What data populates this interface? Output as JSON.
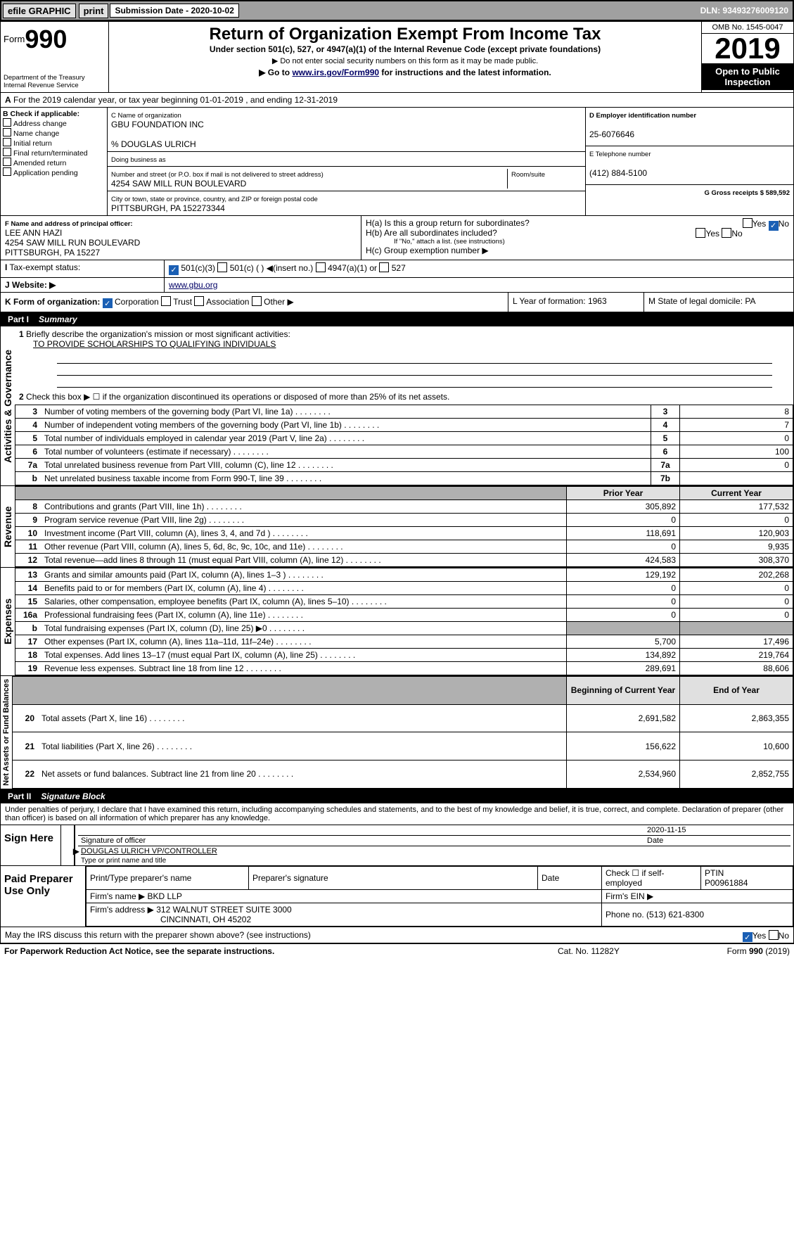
{
  "topbar": {
    "efile": "efile GRAPHIC",
    "print": "print",
    "subLabel": "Submission Date - 2020-10-02",
    "dln": "DLN: 93493276009120"
  },
  "formhdr": {
    "formword": "Form",
    "num": "990",
    "dept": "Department of the Treasury",
    "irs": "Internal Revenue Service",
    "title": "Return of Organization Exempt From Income Tax",
    "sub1": "Under section 501(c), 527, or 4947(a)(1) of the Internal Revenue Code (except private foundations)",
    "sub2": "▶ Do not enter social security numbers on this form as it may be made public.",
    "sub3a": "▶ Go to ",
    "sub3link": "www.irs.gov/Form990",
    "sub3b": " for instructions and the latest information.",
    "omb": "OMB No. 1545-0047",
    "year": "2019",
    "open": "Open to Public Inspection"
  },
  "periodA": "For the 2019 calendar year, or tax year beginning 01-01-2019   , and ending 12-31-2019",
  "B": {
    "hdr": "B Check if applicable:",
    "opts": [
      "Address change",
      "Name change",
      "Initial return",
      "Final return/terminated",
      "Amended return",
      "Application pending"
    ]
  },
  "C": {
    "nameLbl": "C Name of organization",
    "name": "GBU FOUNDATION INC",
    "care": "% DOUGLAS ULRICH",
    "dbaLbl": "Doing business as",
    "streetLbl": "Number and street (or P.O. box if mail is not delivered to street address)",
    "street": "4254 SAW MILL RUN BOULEVARD",
    "roomLbl": "Room/suite",
    "cityLbl": "City or town, state or province, country, and ZIP or foreign postal code",
    "city": "PITTSBURGH, PA  152273344"
  },
  "D": {
    "lbl": "D Employer identification number",
    "val": "25-6076646"
  },
  "E": {
    "lbl": "E Telephone number",
    "val": "(412) 884-5100"
  },
  "G": {
    "lbl": "G Gross receipts $ 589,592"
  },
  "F": {
    "lbl": "F  Name and address of principal officer:",
    "name": "LEE ANN HAZI",
    "addr1": "4254 SAW MILL RUN BOULEVARD",
    "addr2": "PITTSBURGH, PA  15227"
  },
  "H": {
    "a": "H(a)  Is this a group return for subordinates?",
    "b": "H(b)  Are all subordinates included?",
    "bnote": "If \"No,\" attach a list. (see instructions)",
    "c": "H(c)  Group exemption number ▶",
    "yes": "Yes",
    "no": "No"
  },
  "I": {
    "lbl": "Tax-exempt status:",
    "c3": "501(c)(3)",
    "c": "501(c) (  ) ◀(insert no.)",
    "a1": "4947(a)(1) or",
    "s527": "527"
  },
  "J": {
    "lbl": "Website: ▶",
    "val": " www.gbu.org"
  },
  "K": {
    "lbl": "K Form of organization:",
    "corp": "Corporation",
    "trust": "Trust",
    "assoc": "Association",
    "other": "Other ▶"
  },
  "L": {
    "lbl": "L Year of formation: 1963"
  },
  "M": {
    "lbl": "M State of legal domicile: PA"
  },
  "part1": {
    "bar": "Part I",
    "title": "Summary",
    "l1": "Briefly describe the organization's mission or most significant activities:",
    "l1v": "TO PROVIDE SCHOLARSHIPS TO QUALIFYING INDIVIDUALS",
    "l2": "Check this box ▶ ☐  if the organization discontinued its operations or disposed of more than 25% of its net assets.",
    "rows": [
      {
        "n": "3",
        "d": "Number of voting members of the governing body (Part VI, line 1a)",
        "rn": "3",
        "v": "8"
      },
      {
        "n": "4",
        "d": "Number of independent voting members of the governing body (Part VI, line 1b)",
        "rn": "4",
        "v": "7"
      },
      {
        "n": "5",
        "d": "Total number of individuals employed in calendar year 2019 (Part V, line 2a)",
        "rn": "5",
        "v": "0"
      },
      {
        "n": "6",
        "d": "Total number of volunteers (estimate if necessary)",
        "rn": "6",
        "v": "100"
      },
      {
        "n": "7a",
        "d": "Total unrelated business revenue from Part VIII, column (C), line 12",
        "rn": "7a",
        "v": "0"
      },
      {
        "n": "b",
        "d": "Net unrelated business taxable income from Form 990-T, line 39",
        "rn": "7b",
        "v": ""
      }
    ],
    "prior": "Prior Year",
    "curr": "Current Year",
    "begin": "Beginning of Current Year",
    "end": "End of Year",
    "rev": [
      {
        "n": "8",
        "d": "Contributions and grants (Part VIII, line 1h)",
        "p": "305,892",
        "c": "177,532"
      },
      {
        "n": "9",
        "d": "Program service revenue (Part VIII, line 2g)",
        "p": "0",
        "c": "0"
      },
      {
        "n": "10",
        "d": "Investment income (Part VIII, column (A), lines 3, 4, and 7d )",
        "p": "118,691",
        "c": "120,903"
      },
      {
        "n": "11",
        "d": "Other revenue (Part VIII, column (A), lines 5, 6d, 8c, 9c, 10c, and 11e)",
        "p": "0",
        "c": "9,935"
      },
      {
        "n": "12",
        "d": "Total revenue—add lines 8 through 11 (must equal Part VIII, column (A), line 12)",
        "p": "424,583",
        "c": "308,370"
      }
    ],
    "exp": [
      {
        "n": "13",
        "d": "Grants and similar amounts paid (Part IX, column (A), lines 1–3 )",
        "p": "129,192",
        "c": "202,268"
      },
      {
        "n": "14",
        "d": "Benefits paid to or for members (Part IX, column (A), line 4)",
        "p": "0",
        "c": "0"
      },
      {
        "n": "15",
        "d": "Salaries, other compensation, employee benefits (Part IX, column (A), lines 5–10)",
        "p": "0",
        "c": "0"
      },
      {
        "n": "16a",
        "d": "Professional fundraising fees (Part IX, column (A), line 11e)",
        "p": "0",
        "c": "0"
      },
      {
        "n": "b",
        "d": "Total fundraising expenses (Part IX, column (D), line 25) ▶0",
        "p": "",
        "c": "",
        "grey": true
      },
      {
        "n": "17",
        "d": "Other expenses (Part IX, column (A), lines 11a–11d, 11f–24e)",
        "p": "5,700",
        "c": "17,496"
      },
      {
        "n": "18",
        "d": "Total expenses. Add lines 13–17 (must equal Part IX, column (A), line 25)",
        "p": "134,892",
        "c": "219,764"
      },
      {
        "n": "19",
        "d": "Revenue less expenses. Subtract line 18 from line 12",
        "p": "289,691",
        "c": "88,606"
      }
    ],
    "net": [
      {
        "n": "20",
        "d": "Total assets (Part X, line 16)",
        "p": "2,691,582",
        "c": "2,863,355"
      },
      {
        "n": "21",
        "d": "Total liabilities (Part X, line 26)",
        "p": "156,622",
        "c": "10,600"
      },
      {
        "n": "22",
        "d": "Net assets or fund balances. Subtract line 21 from line 20",
        "p": "2,534,960",
        "c": "2,852,755"
      }
    ],
    "vlabels": {
      "ag": "Activities & Governance",
      "rev": "Revenue",
      "exp": "Expenses",
      "net": "Net Assets or Fund Balances"
    }
  },
  "part2": {
    "bar": "Part II",
    "title": "Signature Block",
    "perjury": "Under penalties of perjury, I declare that I have examined this return, including accompanying schedules and statements, and to the best of my knowledge and belief, it is true, correct, and complete. Declaration of preparer (other than officer) is based on all information of which preparer has any knowledge.",
    "date": "2020-11-15",
    "sigoff": "Signature of officer",
    "dateLbl": "Date",
    "typed": "DOUGLAS ULRICH  VP/CONTROLLER",
    "typedLbl": "Type or print name and title",
    "sign": "Sign Here",
    "paid": "Paid Preparer Use Only",
    "pth": "Print/Type preparer's name",
    "psig": "Preparer's signature",
    "pdate": "Date",
    "pcheck": "Check ☐ if self-employed",
    "ptin": "PTIN",
    "ptinv": "P00961884",
    "firmname": "Firm's name    ▶",
    "firmval": "BKD LLP",
    "firmein": "Firm's EIN ▶",
    "firmaddr": "Firm's address ▶",
    "firmaddrv": "312 WALNUT STREET SUITE 3000",
    "firmcity": "CINCINNATI, OH  45202",
    "phone": "Phone no. (513) 621-8300",
    "discuss": "May the IRS discuss this return with the preparer shown above? (see instructions)"
  },
  "footer": {
    "pra": "For Paperwork Reduction Act Notice, see the separate instructions.",
    "cat": "Cat. No. 11282Y",
    "form": "Form 990 (2019)"
  }
}
